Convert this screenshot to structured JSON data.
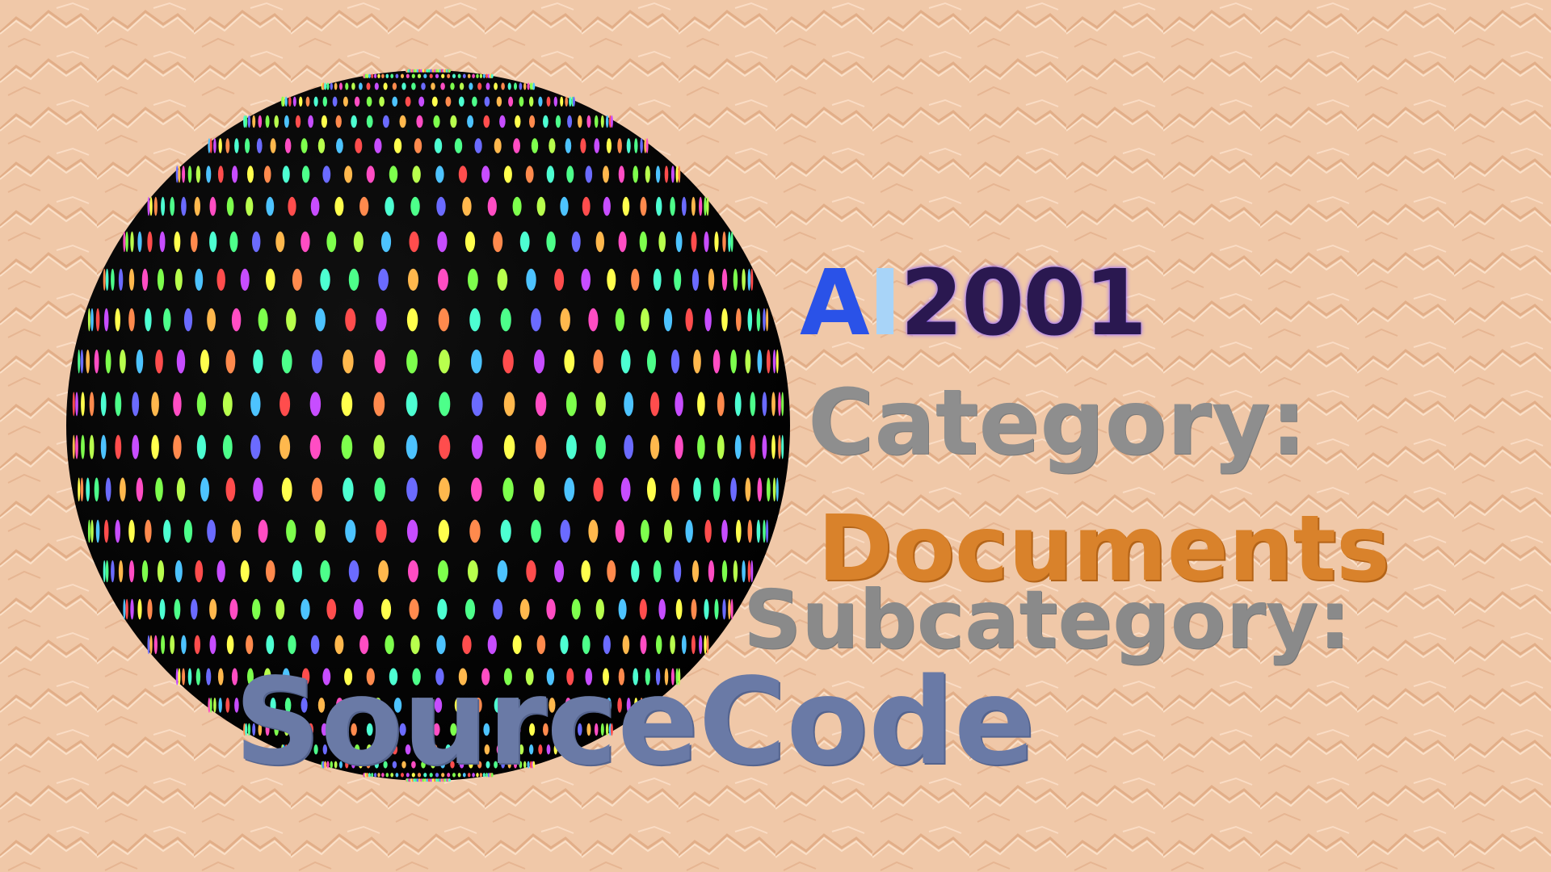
{
  "title": {
    "part_a": "A",
    "part_i": "I",
    "part_year": "2001"
  },
  "category": {
    "label": "Category:",
    "value": "Documents"
  },
  "subcategory": {
    "label": "Subcategory:",
    "value": "SourceCode"
  },
  "colors": {
    "background": "#f0c8a8",
    "sphere": "#000000",
    "title_a": "#2a52e8",
    "title_i": "#a8d4f8",
    "title_year": "#2a1850",
    "category_label": "#8e8e8e",
    "category_value": "#d9822b",
    "subcategory_label": "#8a8a8a",
    "subcategory_value": "#6a7aa6"
  },
  "decorations": {
    "background_texture": "crumpled-paper-texture",
    "sphere": "dotted-disco-sphere"
  }
}
